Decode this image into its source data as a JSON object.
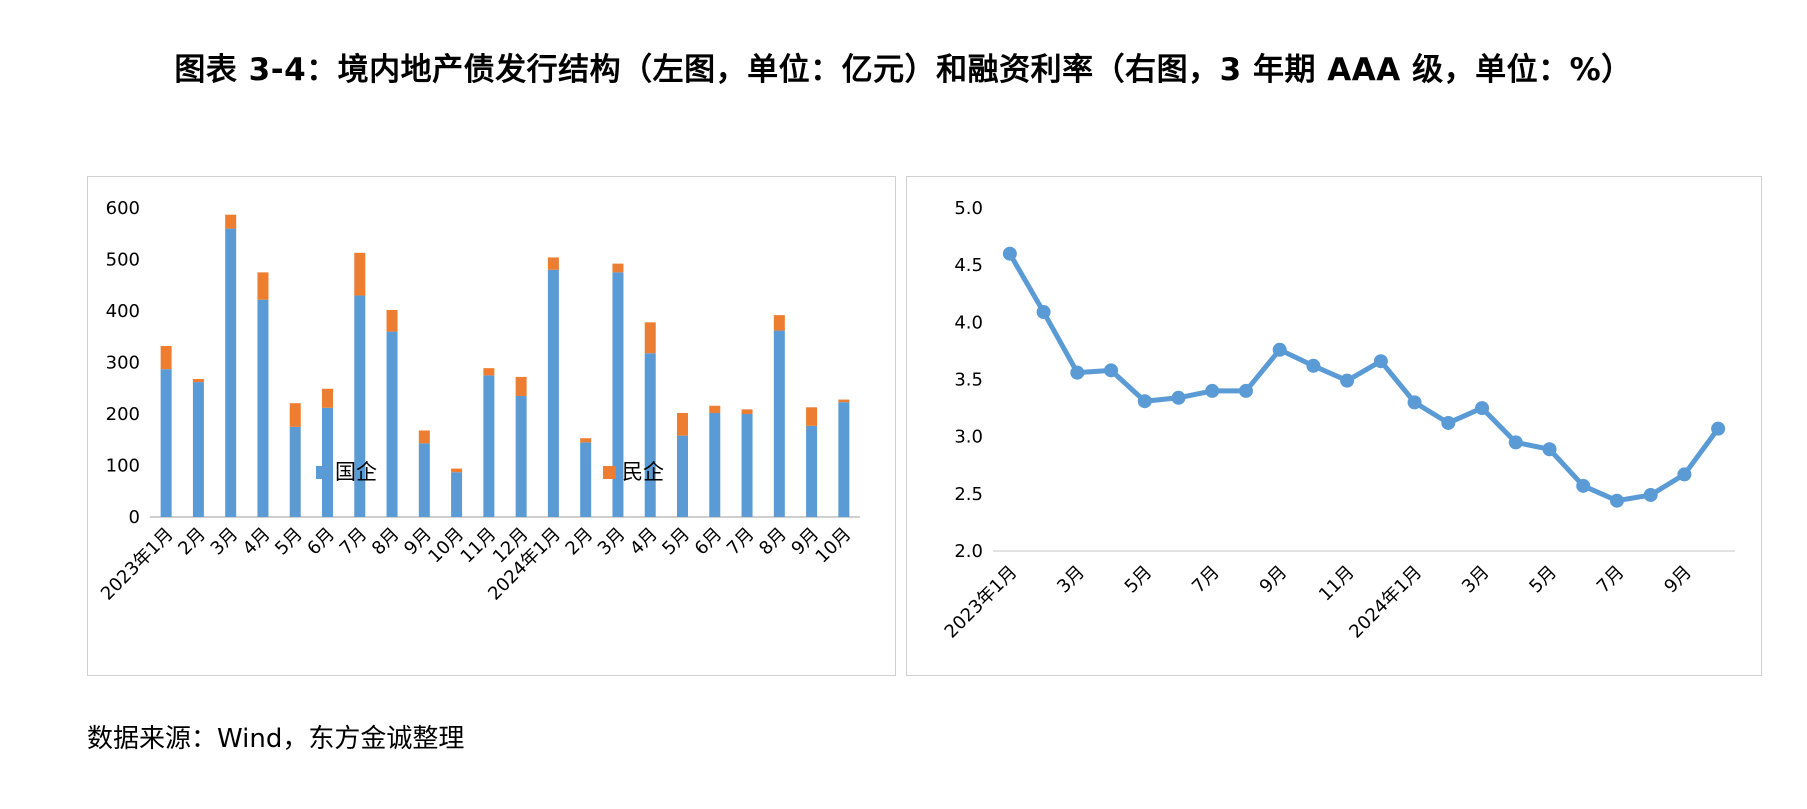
{
  "page": {
    "title": "图表 3-4：境内地产债发行结构（左图，单位：亿元）和融资利率（右图，3 年期 AAA 级，单位：%）",
    "source": "数据来源：Wind，东方金诚整理"
  },
  "colors": {
    "soe": "#5b9bd5",
    "private": "#ed7d31",
    "line": "#5b9bd5",
    "grid": "#d9d9d9",
    "axis": "#bfbfbf"
  },
  "chart_data": [
    {
      "type": "bar",
      "stacked": true,
      "categories": [
        "2023年1月",
        "2月",
        "3月",
        "4月",
        "5月",
        "6月",
        "7月",
        "8月",
        "9月",
        "10月",
        "11月",
        "12月",
        "2024年1月",
        "2月",
        "3月",
        "4月",
        "5月",
        "6月",
        "7月",
        "8月",
        "9月",
        "10月"
      ],
      "series": [
        {
          "name": "国企",
          "color": "#5b9bd5",
          "values": [
            287,
            262,
            560,
            422,
            175,
            212,
            430,
            360,
            143,
            87,
            275,
            235,
            480,
            145,
            475,
            318,
            158,
            202,
            200,
            362,
            177,
            223
          ]
        },
        {
          "name": "民企",
          "color": "#ed7d31",
          "values": [
            45,
            6,
            27,
            53,
            46,
            37,
            83,
            42,
            25,
            7,
            14,
            37,
            24,
            8,
            17,
            60,
            44,
            14,
            9,
            30,
            36,
            5
          ]
        }
      ],
      "ylim": [
        0,
        600
      ],
      "yticks": [
        0,
        100,
        200,
        300,
        400,
        500,
        600
      ],
      "grid": false,
      "legend": "bottom",
      "title": "",
      "xlabel": "",
      "ylabel": ""
    },
    {
      "type": "line",
      "categories": [
        "2023年1月",
        "2月",
        "3月",
        "4月",
        "5月",
        "6月",
        "7月",
        "8月",
        "9月",
        "10月",
        "11月",
        "12月",
        "2024年1月",
        "2月",
        "3月",
        "4月",
        "5月",
        "6月",
        "7月",
        "8月",
        "9月",
        "10月"
      ],
      "tick_labels": [
        "2023年1月",
        "",
        "3月",
        "",
        "5月",
        "",
        "7月",
        "",
        "9月",
        "",
        "11月",
        "",
        "2024年1月",
        "",
        "3月",
        "",
        "5月",
        "",
        "7月",
        "",
        "9月",
        ""
      ],
      "series": [
        {
          "color": "#5b9bd5",
          "values": [
            4.6,
            4.09,
            3.56,
            3.58,
            3.31,
            3.34,
            3.4,
            3.4,
            3.76,
            3.62,
            3.49,
            3.66,
            3.3,
            3.12,
            3.25,
            2.95,
            2.89,
            2.57,
            2.44,
            2.49,
            2.67,
            3.07
          ]
        }
      ],
      "ylim": [
        2.0,
        5.0
      ],
      "yticks": [
        "2.0",
        "2.5",
        "3.0",
        "3.5",
        "4.0",
        "4.5",
        "5.0"
      ],
      "grid": false,
      "legend": "none",
      "title": "",
      "xlabel": "",
      "ylabel": ""
    }
  ]
}
